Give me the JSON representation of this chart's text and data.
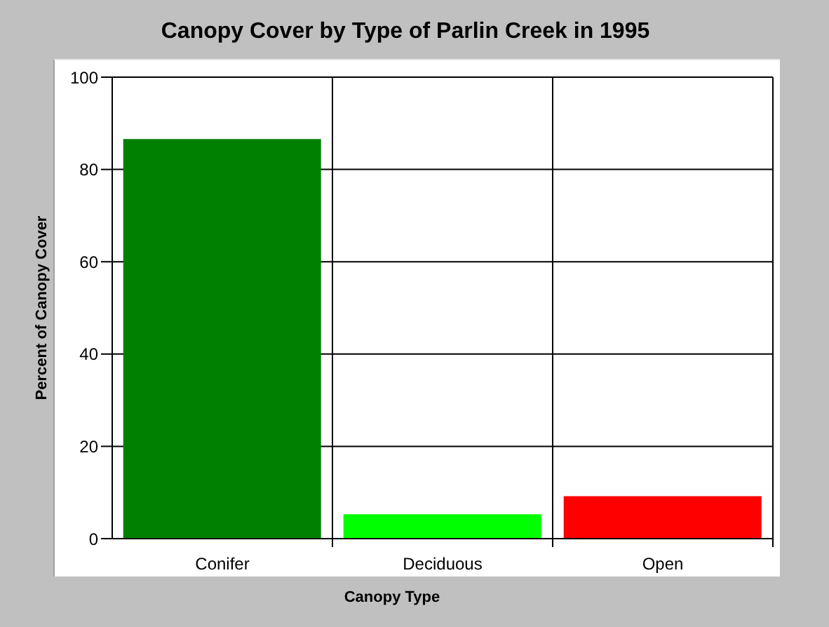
{
  "chart_data": {
    "type": "bar",
    "title": "Canopy Cover by Type of Parlin Creek in 1995",
    "xlabel": "Canopy Type",
    "ylabel": "Percent of Canopy Cover",
    "categories": [
      "Conifer",
      "Deciduous",
      "Open"
    ],
    "values": [
      86.6,
      5.3,
      9.2
    ],
    "colors": [
      "#008000",
      "#00ff00",
      "#ff0000"
    ],
    "ylim": [
      0,
      100
    ],
    "yticks": [
      0,
      20,
      40,
      60,
      80,
      100
    ],
    "grid": true
  }
}
